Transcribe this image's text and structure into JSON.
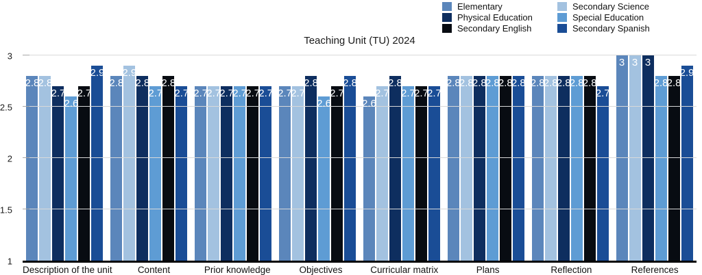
{
  "title": "Teaching Unit (TU) 2024",
  "legend": {
    "position": "top-right",
    "columns": [
      [
        {
          "label": "Elementary",
          "color": "#5b86bb"
        },
        {
          "label": "Physical Education",
          "color": "#0e2e5f"
        },
        {
          "label": "Secondary English",
          "color": "#080c12"
        }
      ],
      [
        {
          "label": "Secondary Science",
          "color": "#a3c2e0"
        },
        {
          "label": "Special Education",
          "color": "#5e9cd4"
        },
        {
          "label": "Secondary Spanish",
          "color": "#1a4d96"
        }
      ]
    ]
  },
  "chart_data": {
    "type": "bar",
    "title": "Teaching Unit (TU) 2024",
    "xlabel": "",
    "ylabel": "",
    "ylim": [
      1,
      3
    ],
    "yticks": [
      1,
      1.5,
      2,
      2.5,
      3
    ],
    "grid": true,
    "legend_position": "top-right",
    "value_labels": {
      "show": true,
      "color": "#ffffff",
      "position": "inside-top"
    },
    "categories": [
      "Description of the unit",
      "Content",
      "Prior knowledge",
      "Objectives",
      "Curricular matrix",
      "Plans",
      "Reflection",
      "References"
    ],
    "series": [
      {
        "name": "Elementary",
        "color": "#5b86bb",
        "values": [
          2.8,
          2.8,
          2.7,
          2.7,
          2.6,
          2.8,
          2.8,
          3
        ]
      },
      {
        "name": "Secondary Science",
        "color": "#a3c2e0",
        "values": [
          2.8,
          2.9,
          2.7,
          2.7,
          2.7,
          2.8,
          2.8,
          3
        ]
      },
      {
        "name": "Physical Education",
        "color": "#0e2e5f",
        "values": [
          2.7,
          2.8,
          2.7,
          2.8,
          2.8,
          2.8,
          2.8,
          3
        ]
      },
      {
        "name": "Special Education",
        "color": "#5e9cd4",
        "values": [
          2.6,
          2.7,
          2.7,
          2.6,
          2.7,
          2.8,
          2.8,
          2.8
        ]
      },
      {
        "name": "Secondary English",
        "color": "#080c12",
        "values": [
          2.7,
          2.8,
          2.7,
          2.7,
          2.7,
          2.8,
          2.8,
          2.8
        ]
      },
      {
        "name": "Secondary Spanish",
        "color": "#1a4d96",
        "values": [
          2.9,
          2.7,
          2.7,
          2.8,
          2.7,
          2.8,
          2.7,
          2.9
        ]
      }
    ],
    "colors": {
      "gridline": "#d9d9d9",
      "axis_line": "#000000",
      "tick_text": "#1a1a1a"
    }
  }
}
